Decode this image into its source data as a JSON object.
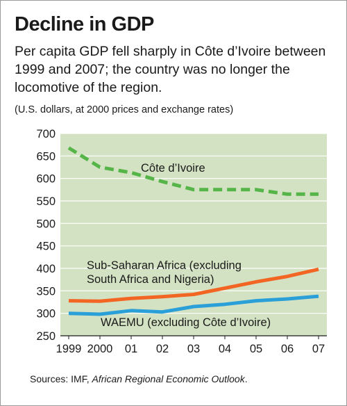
{
  "header": {
    "title": "Decline in GDP",
    "subtitle": "Per capita GDP fell sharply in Côte d’Ivoire between 1999 and 2007; the country was no longer the locomotive of the region.",
    "units": "(U.S. dollars, at 2000 prices and exchange rates)"
  },
  "source": {
    "prefix": "Sources: IMF, ",
    "publication": "African Regional Economic Outlook",
    "suffix": "."
  },
  "chart_data": {
    "type": "line",
    "x": [
      1999,
      2000,
      2001,
      2002,
      2003,
      2004,
      2005,
      2006,
      2007
    ],
    "xtick_labels": [
      "1999",
      "2000",
      "01",
      "02",
      "03",
      "04",
      "05",
      "06",
      "07"
    ],
    "ylim": [
      250,
      700
    ],
    "yticks": [
      250,
      300,
      350,
      400,
      450,
      500,
      550,
      600,
      650,
      700
    ],
    "grid": true,
    "colors": {
      "background": "#d3e2c2",
      "grid": "#ffffff"
    },
    "series": [
      {
        "name": "Côte d’Ivoire",
        "label_lines": [
          "Côte d’Ivoire"
        ],
        "style": "dashed",
        "color": "#56b548",
        "values": [
          668,
          625,
          613,
          593,
          575,
          575,
          575,
          565,
          565
        ]
      },
      {
        "name": "Sub-Saharan Africa (excluding South Africa and Nigeria)",
        "label_lines": [
          "Sub-Saharan Africa (excluding",
          "South Africa and Nigeria)"
        ],
        "style": "solid",
        "color": "#f26522",
        "values": [
          328,
          327,
          333,
          337,
          342,
          356,
          370,
          382,
          398
        ]
      },
      {
        "name": "WAEMU (excluding Côte d’Ivoire)",
        "label_lines": [
          "WAEMU (excluding Côte d’Ivoire)"
        ],
        "style": "solid",
        "color": "#2a9fd8",
        "values": [
          300,
          298,
          306,
          303,
          315,
          320,
          328,
          332,
          338
        ]
      }
    ]
  }
}
